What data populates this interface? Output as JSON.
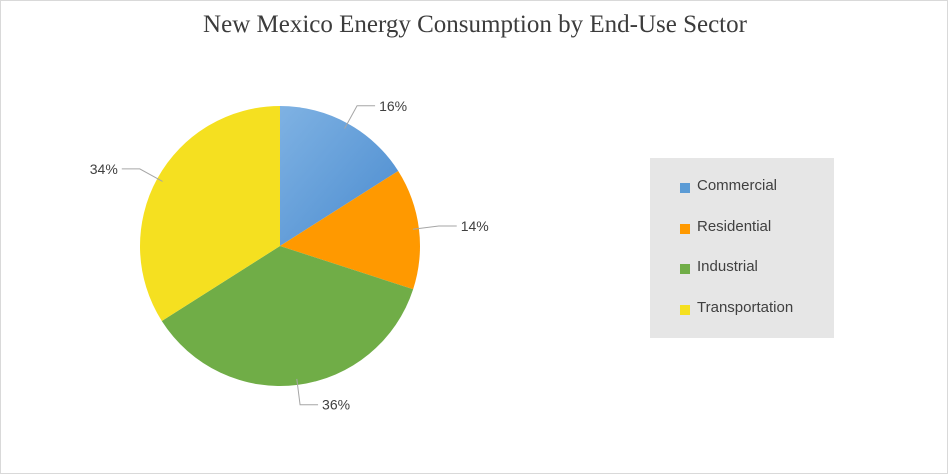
{
  "chart_data": {
    "type": "pie",
    "title": "New Mexico Energy Consumption by End-Use Sector",
    "categories": [
      "Commercial",
      "Residential",
      "Industrial",
      "Transportation"
    ],
    "values": [
      16,
      14,
      36,
      34
    ],
    "labels": [
      "16%",
      "14%",
      "36%",
      "34%"
    ],
    "colors": [
      "#5b9bd5",
      "#ff9900",
      "#70ad47",
      "#f5e020"
    ],
    "legend_position": "right",
    "start_angle": "12 o'clock, clockwise"
  }
}
